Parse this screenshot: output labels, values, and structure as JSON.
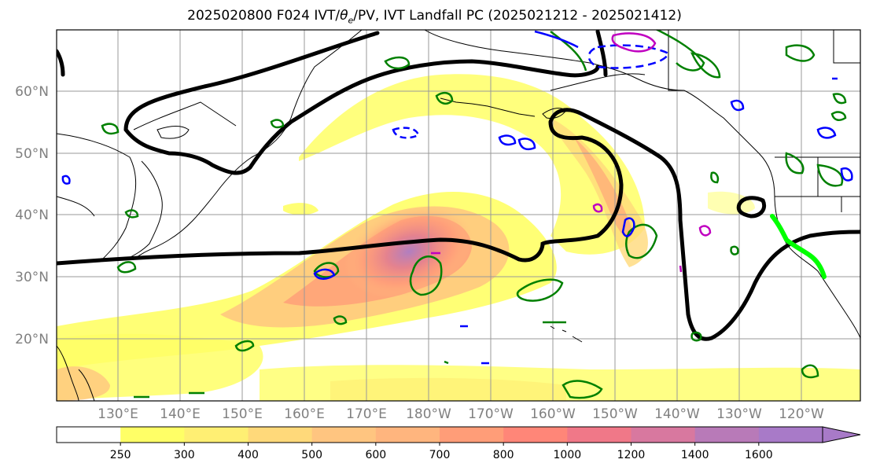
{
  "title": "2025020800 F024 IVT/θe/PV, IVT Landfall PC (2025021212 - 2025021412)",
  "title_parts": {
    "prefix": "2025020800 F024 IVT/",
    "theta": "θ",
    "sub": "e",
    "suffix": "/PV, IVT Landfall PC (2025021212 - 2025021412)"
  },
  "map": {
    "lat_labels": [
      "60°N",
      "50°N",
      "40°N",
      "30°N",
      "20°N"
    ],
    "lon_labels": [
      "130°E",
      "140°E",
      "150°E",
      "160°E",
      "170°E",
      "180°W",
      "170°W",
      "160°W",
      "150°W",
      "140°W",
      "130°W",
      "120°W"
    ],
    "grid": true,
    "colors": {
      "theta_e_contour": "#000000",
      "pv_contour": "#008000",
      "pv_negative": "#0000ff",
      "pv_magenta": "#c000c0",
      "landfall_line": "#00ff00",
      "coast": "#000000"
    }
  },
  "colorbar": {
    "levels": [
      "250",
      "300",
      "400",
      "500",
      "600",
      "700",
      "800",
      "1000",
      "1200",
      "1400",
      "1600"
    ],
    "colors": [
      "#ffffff",
      "#ffff66",
      "#ffef73",
      "#ffd97a",
      "#ffc580",
      "#ffb57e",
      "#ff9d78",
      "#ff8678",
      "#f07888",
      "#d8789f",
      "#b87ab8",
      "#a87ac8"
    ],
    "extend": "max"
  }
}
